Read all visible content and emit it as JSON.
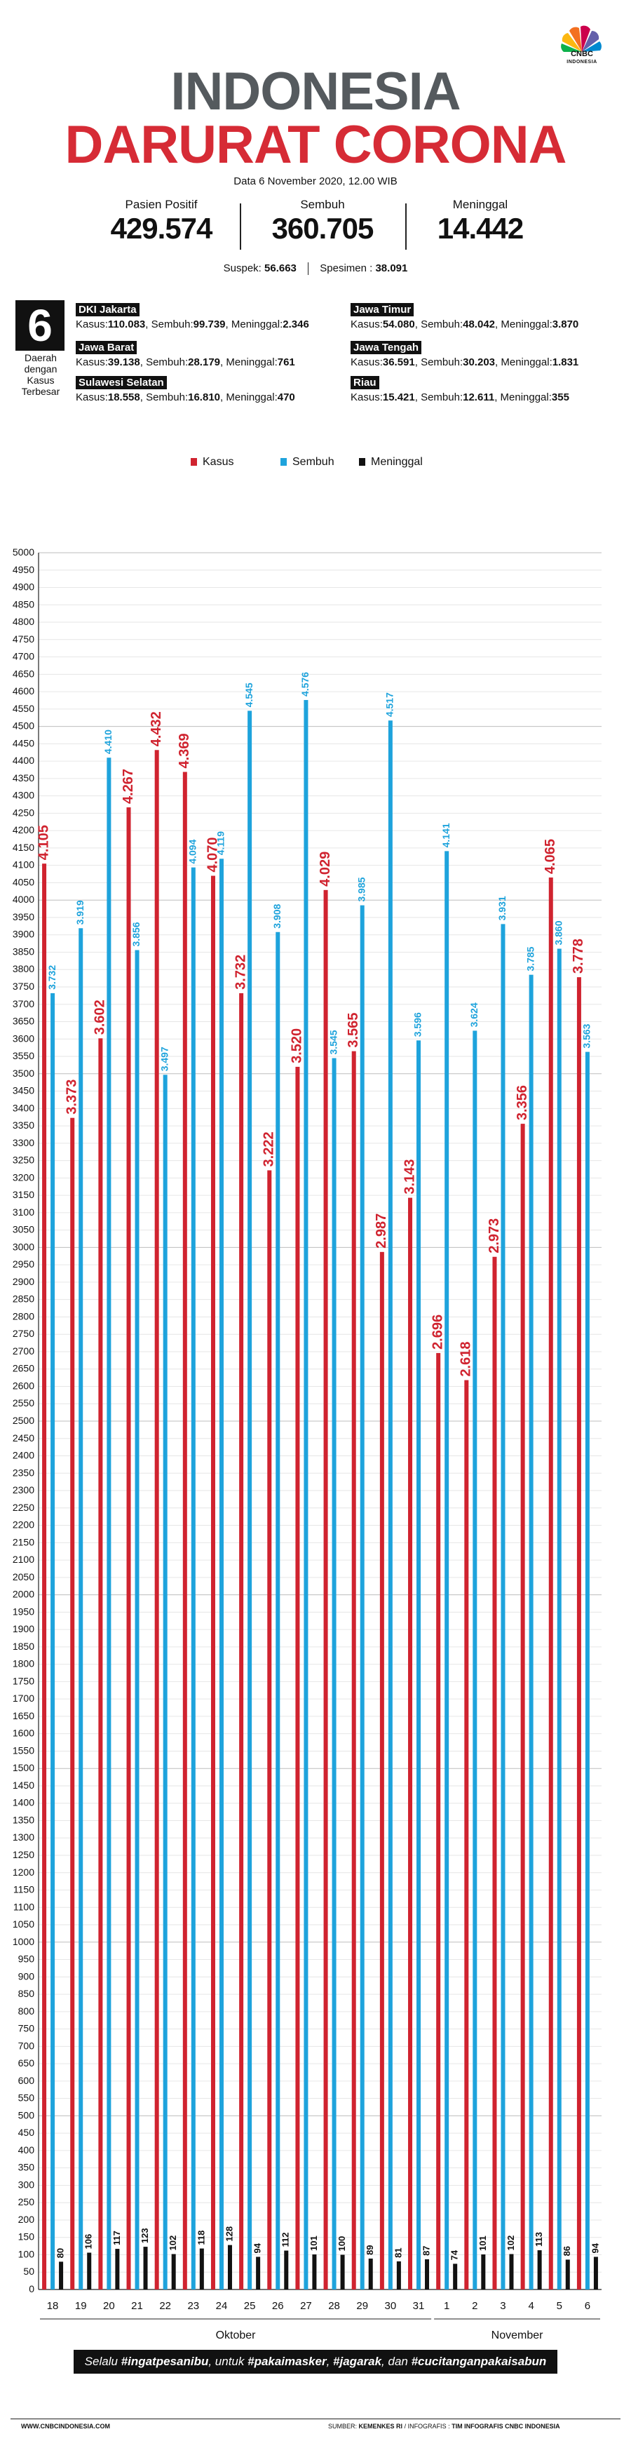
{
  "logo": {
    "text": "CNBC",
    "sub": "INDONESIA"
  },
  "title": {
    "line1": "INDONESIA",
    "line2": "DARURAT CORONA"
  },
  "date": "Data 6 November 2020, 12.00 WIB",
  "stats": {
    "positif": {
      "label": "Pasien Positif",
      "value": "429.574"
    },
    "sembuh": {
      "label": "Sembuh",
      "value": "360.705"
    },
    "meninggal": {
      "label": "Meninggal",
      "value": "14.442"
    }
  },
  "substats": {
    "suspek_label": "Suspek:",
    "suspek_value": "56.663",
    "spesimen_label": "Spesimen :",
    "spesimen_value": "38.091"
  },
  "regions_block": {
    "count": "6",
    "caption": "Daerah dengan Kasus Terbesar",
    "regions": [
      {
        "name": "DKI Jakarta",
        "kasus_label": "Kasus:",
        "kasus": "110.083",
        "sembuh_label": ", Sembuh:",
        "sembuh": "99.739",
        "meninggal_label": ", Meninggal:",
        "meninggal": "2.346"
      },
      {
        "name": "Jawa Barat",
        "kasus_label": "Kasus:",
        "kasus": "39.138",
        "sembuh_label": ", Sembuh:",
        "sembuh": "28.179",
        "meninggal_label": ", Meninggal:",
        "meninggal": "761"
      },
      {
        "name": "Sulawesi Selatan",
        "kasus_label": "Kasus:",
        "kasus": "18.558",
        "sembuh_label": ", Sembuh:",
        "sembuh": "16.810",
        "meninggal_label": ", Meninggal:",
        "meninggal": "470"
      },
      {
        "name": "Jawa Timur",
        "kasus_label": "Kasus:",
        "kasus": "54.080",
        "sembuh_label": ", Sembuh:",
        "sembuh": "48.042",
        "meninggal_label": ", Meninggal:",
        "meninggal": "3.870"
      },
      {
        "name": "Jawa Tengah",
        "kasus_label": "Kasus:",
        "kasus": "36.591",
        "sembuh_label": ", Sembuh:",
        "sembuh": "30.203",
        "meninggal_label": ", Meninggal:",
        "meninggal": "1.831"
      },
      {
        "name": "Riau",
        "kasus_label": "Kasus:",
        "kasus": "15.421",
        "sembuh_label": ", Sembuh:",
        "sembuh": "12.611",
        "meninggal_label": ", Meninggal:",
        "meninggal": "355"
      }
    ]
  },
  "colors": {
    "kasus": "#d0232f",
    "sembuh": "#1ea3dc",
    "meninggal": "#111111",
    "title_gray": "#555a5e",
    "title_red": "#d62b35"
  },
  "chart_data": {
    "type": "bar",
    "categories": [
      "18",
      "19",
      "20",
      "21",
      "22",
      "23",
      "24",
      "25",
      "26",
      "27",
      "28",
      "29",
      "30",
      "31",
      "1",
      "2",
      "3",
      "4",
      "5",
      "6"
    ],
    "category_groups": [
      {
        "label": "Oktober",
        "from": 0,
        "to": 13
      },
      {
        "label": "November",
        "from": 14,
        "to": 19
      }
    ],
    "series": [
      {
        "name": "Kasus",
        "values": [
          4105,
          3373,
          3602,
          4267,
          4432,
          4369,
          4070,
          3732,
          3222,
          3520,
          4029,
          3565,
          2987,
          3143,
          2696,
          2618,
          2973,
          3356,
          4065,
          3778
        ]
      },
      {
        "name": "Sembuh",
        "values": [
          3732,
          3919,
          4410,
          3856,
          3497,
          4094,
          4119,
          4545,
          3908,
          4576,
          3545,
          3985,
          4517,
          3596,
          4141,
          3624,
          3931,
          3785,
          3860,
          3563
        ]
      },
      {
        "name": "Meninggal",
        "values": [
          80,
          106,
          117,
          123,
          102,
          118,
          128,
          94,
          112,
          101,
          100,
          89,
          81,
          87,
          74,
          101,
          102,
          113,
          86,
          94
        ]
      }
    ],
    "value_labels": {
      "Kasus": [
        "4.105",
        "3.373",
        "3.602",
        "4.267",
        "4.432",
        "4.369",
        "4.070",
        "3.732",
        "3.222",
        "3.520",
        "4.029",
        "3.565",
        "2.987",
        "3.143",
        "2.696",
        "2.618",
        "2.973",
        "3.356",
        "4.065",
        "3.778"
      ],
      "Sembuh": [
        "3.732",
        "3.919",
        "4.410",
        "3.856",
        "3.497",
        "4.094",
        "4.119",
        "4.545",
        "3.908",
        "4.576",
        "3.545",
        "3.985",
        "4.517",
        "3.596",
        "4.141",
        "3.624",
        "3.931",
        "3.785",
        "3.860",
        "3.563"
      ],
      "Meninggal": [
        "80",
        "106",
        "117",
        "123",
        "102",
        "118",
        "128",
        "94",
        "112",
        "101",
        "100",
        "89",
        "81",
        "87",
        "74",
        "101",
        "102",
        "113",
        "86",
        "94"
      ]
    },
    "ylim": [
      0,
      5000
    ],
    "ytick_step": 50,
    "grid": true,
    "legend": "top-center"
  },
  "footer": {
    "message_parts": [
      "Selalu ",
      "#ingatpesanibu",
      ", untuk ",
      "#pakaimasker",
      ", ",
      "#jagarak",
      ", dan ",
      "#cucitanganpakaisabun"
    ],
    "website": "WWW.CNBCINDONESIA.COM",
    "source_label": "SUMBER:",
    "source": "KEMENKES RI",
    "infografis_label": "/ INFOGRAFIS :",
    "infografis": "TIM INFOGRAFIS CNBC INDONESIA"
  }
}
